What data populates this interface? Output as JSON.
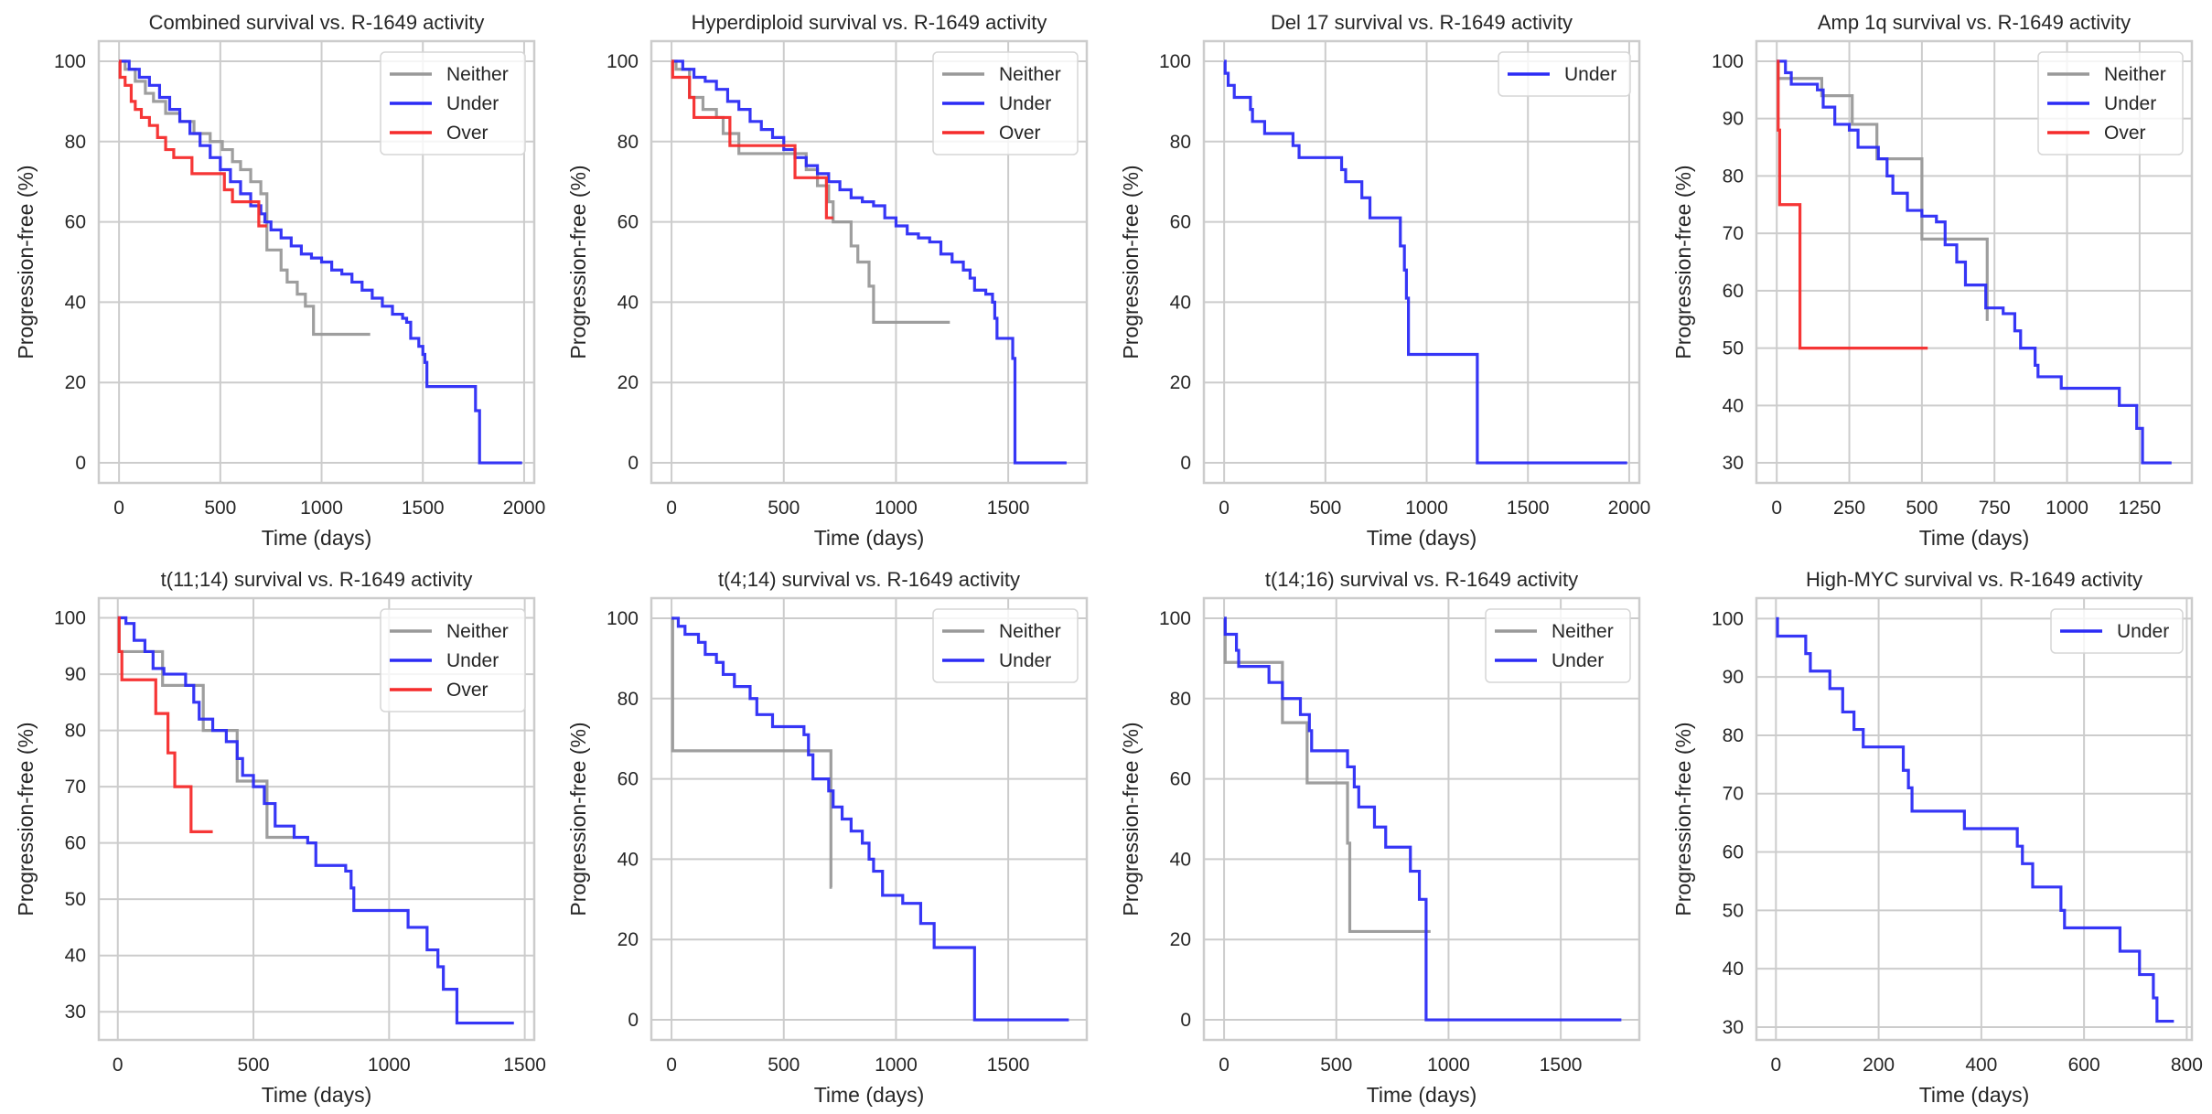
{
  "colors": {
    "Neither": "#999999",
    "Under": "#2b2bf5",
    "Over": "#f52b2b",
    "grid": "#cccccc",
    "frame": "#cccccc"
  },
  "chart_data": [
    {
      "type": "line",
      "step": true,
      "title": "Combined survival vs. R-1649 activity",
      "xlabel": "Time (days)",
      "ylabel": "Progression-free (%)",
      "xlim": [
        -100,
        2050
      ],
      "ylim": [
        -5,
        105
      ],
      "xticks": [
        0,
        500,
        1000,
        1500,
        2000
      ],
      "yticks": [
        0,
        20,
        40,
        60,
        80,
        100
      ],
      "grid": true,
      "legend": "top-right",
      "series": [
        {
          "name": "Neither",
          "x": [
            0,
            30,
            80,
            130,
            170,
            230,
            300,
            370,
            450,
            510,
            560,
            600,
            650,
            700,
            730,
            800,
            830,
            880,
            920,
            960,
            1240
          ],
          "y": [
            100,
            98,
            95,
            92,
            90,
            87,
            85,
            82,
            80,
            78,
            75,
            73,
            70,
            67,
            53,
            48,
            45,
            42,
            39,
            32,
            32
          ]
        },
        {
          "name": "Under",
          "x": [
            0,
            50,
            100,
            150,
            200,
            250,
            300,
            350,
            400,
            450,
            500,
            550,
            600,
            650,
            700,
            720,
            750,
            800,
            850,
            900,
            950,
            1000,
            1050,
            1100,
            1150,
            1200,
            1250,
            1300,
            1350,
            1400,
            1420,
            1440,
            1480,
            1500,
            1510,
            1520,
            1750,
            1760,
            1780,
            1990
          ],
          "y": [
            100,
            98,
            96,
            94,
            91,
            88,
            85,
            82,
            79,
            76,
            73,
            70,
            67,
            64,
            62,
            60,
            58,
            56,
            54,
            52,
            51,
            50,
            48,
            47,
            45,
            43,
            41,
            39,
            37,
            36,
            35,
            31,
            29,
            27,
            25,
            19,
            19,
            13,
            0,
            0
          ]
        },
        {
          "name": "Over",
          "x": [
            0,
            5,
            30,
            60,
            80,
            110,
            150,
            190,
            230,
            270,
            360,
            520,
            560,
            690,
            730
          ],
          "y": [
            100,
            96,
            94,
            90,
            88,
            86,
            84,
            81,
            78,
            76,
            72,
            68,
            65,
            59,
            59
          ]
        }
      ]
    },
    {
      "type": "line",
      "step": true,
      "title": "Hyperdiploid survival vs. R-1649 activity",
      "xlabel": "Time (days)",
      "ylabel": "Progression-free (%)",
      "xlim": [
        -90,
        1850
      ],
      "ylim": [
        -5,
        105
      ],
      "xticks": [
        0,
        500,
        1000,
        1500
      ],
      "yticks": [
        0,
        20,
        40,
        60,
        80,
        100
      ],
      "grid": true,
      "legend": "top-right",
      "series": [
        {
          "name": "Neither",
          "x": [
            0,
            20,
            80,
            140,
            200,
            230,
            300,
            540,
            600,
            650,
            700,
            720,
            800,
            830,
            880,
            900,
            1240
          ],
          "y": [
            100,
            98,
            91,
            88,
            86,
            82,
            77,
            77,
            73,
            69,
            65,
            60,
            54,
            50,
            44,
            35,
            35
          ]
        },
        {
          "name": "Under",
          "x": [
            0,
            50,
            100,
            150,
            200,
            250,
            300,
            350,
            400,
            450,
            500,
            550,
            600,
            650,
            700,
            750,
            800,
            850,
            900,
            950,
            1000,
            1050,
            1100,
            1150,
            1200,
            1250,
            1300,
            1330,
            1350,
            1400,
            1430,
            1440,
            1450,
            1510,
            1520,
            1530,
            1760
          ],
          "y": [
            100,
            98,
            96,
            95,
            93,
            90,
            88,
            85,
            83,
            81,
            78,
            76,
            74,
            72,
            70,
            68,
            66,
            65,
            64,
            61,
            59,
            57,
            56,
            55,
            52,
            50,
            48,
            46,
            43,
            42,
            40,
            36,
            31,
            31,
            26,
            0,
            0
          ]
        },
        {
          "name": "Over",
          "x": [
            0,
            5,
            80,
            100,
            260,
            550,
            690,
            720
          ],
          "y": [
            100,
            96,
            91,
            86,
            79,
            71,
            61,
            61
          ]
        }
      ]
    },
    {
      "type": "line",
      "step": true,
      "title": "Del 17 survival vs. R-1649 activity",
      "xlabel": "Time (days)",
      "ylabel": "Progression-free (%)",
      "xlim": [
        -100,
        2050
      ],
      "ylim": [
        -5,
        105
      ],
      "xticks": [
        0,
        500,
        1000,
        1500,
        2000
      ],
      "yticks": [
        0,
        20,
        40,
        60,
        80,
        100
      ],
      "grid": true,
      "legend": "top-right",
      "series": [
        {
          "name": "Under",
          "x": [
            0,
            5,
            20,
            50,
            130,
            140,
            200,
            340,
            370,
            580,
            600,
            680,
            720,
            870,
            890,
            900,
            910,
            1250,
            1990
          ],
          "y": [
            100,
            97,
            94,
            91,
            88,
            85,
            82,
            79,
            76,
            73,
            70,
            66,
            61,
            54,
            48,
            41,
            27,
            0,
            0
          ]
        }
      ]
    },
    {
      "type": "line",
      "step": true,
      "title": "Amp 1q survival vs. R-1649 activity",
      "xlabel": "Time (days)",
      "ylabel": "Progression-free (%)",
      "xlim": [
        -70,
        1430
      ],
      "ylim": [
        26.5,
        103.5
      ],
      "xticks": [
        0,
        250,
        500,
        750,
        1000,
        1250
      ],
      "yticks": [
        30,
        40,
        50,
        60,
        70,
        80,
        90,
        100
      ],
      "grid": true,
      "legend": "top-right",
      "series": [
        {
          "name": "Neither",
          "x": [
            0,
            5,
            155,
            260,
            345,
            500,
            725,
            730
          ],
          "y": [
            100,
            97,
            94,
            89,
            83,
            69,
            55,
            55
          ]
        },
        {
          "name": "Under",
          "x": [
            0,
            30,
            50,
            140,
            160,
            200,
            250,
            280,
            350,
            380,
            400,
            450,
            500,
            550,
            580,
            620,
            650,
            720,
            780,
            820,
            840,
            890,
            900,
            980,
            1180,
            1240,
            1260,
            1360
          ],
          "y": [
            100,
            98,
            96,
            95,
            92,
            89,
            88,
            85,
            83,
            80,
            77,
            74,
            73,
            72,
            68,
            65,
            61,
            57,
            56,
            53,
            50,
            47,
            45,
            43,
            40,
            36,
            30,
            30
          ]
        },
        {
          "name": "Over",
          "x": [
            0,
            5,
            10,
            80,
            520
          ],
          "y": [
            100,
            88,
            75,
            50,
            50
          ]
        }
      ]
    },
    {
      "type": "line",
      "step": true,
      "title": "t(11;14) survival vs. R-1649 activity",
      "xlabel": "Time (days)",
      "ylabel": "Progression-free (%)",
      "xlim": [
        -70,
        1535
      ],
      "ylim": [
        25,
        103.5
      ],
      "xticks": [
        0,
        500,
        1000,
        1500
      ],
      "yticks": [
        30,
        40,
        50,
        60,
        70,
        80,
        90,
        100
      ],
      "grid": true,
      "legend": "top-right",
      "series": [
        {
          "name": "Neither",
          "x": [
            0,
            5,
            165,
            315,
            440,
            550,
            650
          ],
          "y": [
            100,
            94,
            88,
            80,
            71,
            61,
            61
          ]
        },
        {
          "name": "Under",
          "x": [
            0,
            30,
            60,
            100,
            130,
            170,
            250,
            280,
            300,
            350,
            400,
            440,
            460,
            500,
            540,
            580,
            650,
            700,
            730,
            840,
            860,
            870,
            1070,
            1140,
            1180,
            1200,
            1250,
            1460
          ],
          "y": [
            100,
            99,
            96,
            94,
            91,
            90,
            88,
            85,
            82,
            80,
            78,
            75,
            72,
            70,
            67,
            63,
            61,
            60,
            56,
            55,
            52,
            48,
            45,
            41,
            38,
            34,
            28,
            28
          ]
        },
        {
          "name": "Over",
          "x": [
            0,
            5,
            15,
            140,
            185,
            210,
            270,
            350
          ],
          "y": [
            100,
            94,
            89,
            83,
            76,
            70,
            62,
            62
          ]
        }
      ]
    },
    {
      "type": "line",
      "step": true,
      "title": "t(4;14) survival vs. R-1649 activity",
      "xlabel": "Time (days)",
      "ylabel": "Progression-free (%)",
      "xlim": [
        -90,
        1850
      ],
      "ylim": [
        -5,
        105
      ],
      "xticks": [
        0,
        500,
        1000,
        1500
      ],
      "yticks": [
        0,
        20,
        40,
        60,
        80,
        100
      ],
      "grid": true,
      "legend": "top-right",
      "series": [
        {
          "name": "Neither",
          "x": [
            0,
            5,
            710,
            715
          ],
          "y": [
            100,
            67,
            33,
            33
          ]
        },
        {
          "name": "Under",
          "x": [
            0,
            30,
            60,
            120,
            150,
            200,
            230,
            280,
            350,
            380,
            450,
            590,
            610,
            630,
            700,
            720,
            760,
            800,
            850,
            880,
            900,
            940,
            1030,
            1110,
            1170,
            1350,
            1770
          ],
          "y": [
            100,
            98,
            96,
            94,
            91,
            89,
            86,
            83,
            80,
            76,
            73,
            71,
            66,
            60,
            57,
            53,
            50,
            47,
            44,
            40,
            37,
            31,
            29,
            24,
            18,
            0,
            0
          ]
        }
      ]
    },
    {
      "type": "line",
      "step": true,
      "title": "t(14;16) survival vs. R-1649 activity",
      "xlabel": "Time (days)",
      "ylabel": "Progression-free (%)",
      "xlim": [
        -90,
        1850
      ],
      "ylim": [
        -5,
        105
      ],
      "xticks": [
        0,
        500,
        1000,
        1500
      ],
      "yticks": [
        0,
        20,
        40,
        60,
        80,
        100
      ],
      "grid": true,
      "legend": "top-right",
      "series": [
        {
          "name": "Neither",
          "x": [
            0,
            5,
            260,
            370,
            550,
            560,
            920
          ],
          "y": [
            100,
            89,
            74,
            59,
            44,
            22,
            22
          ]
        },
        {
          "name": "Under",
          "x": [
            0,
            5,
            55,
            65,
            200,
            260,
            340,
            380,
            390,
            550,
            580,
            600,
            670,
            720,
            830,
            870,
            900,
            1770
          ],
          "y": [
            100,
            96,
            92,
            88,
            84,
            80,
            76,
            72,
            67,
            63,
            58,
            53,
            48,
            43,
            37,
            30,
            0,
            0
          ]
        }
      ]
    },
    {
      "type": "line",
      "step": true,
      "title": "High-MYC survival vs. R-1649 activity",
      "xlabel": "Time (days)",
      "ylabel": "Progression-free (%)",
      "xlim": [
        -38,
        810
      ],
      "ylim": [
        27.8,
        103.5
      ],
      "xticks": [
        0,
        200,
        400,
        600,
        800
      ],
      "yticks": [
        30,
        40,
        50,
        60,
        70,
        80,
        90,
        100
      ],
      "grid": true,
      "legend": "top-right",
      "series": [
        {
          "name": "Under",
          "x": [
            0,
            3,
            58,
            67,
            105,
            130,
            152,
            170,
            248,
            258,
            265,
            367,
            470,
            480,
            500,
            555,
            562,
            670,
            708,
            735,
            742,
            775
          ],
          "y": [
            100,
            97,
            94,
            91,
            88,
            84,
            81,
            78,
            74,
            71,
            67,
            64,
            61,
            58,
            54,
            50,
            47,
            43,
            39,
            35,
            31,
            31
          ]
        }
      ]
    }
  ]
}
